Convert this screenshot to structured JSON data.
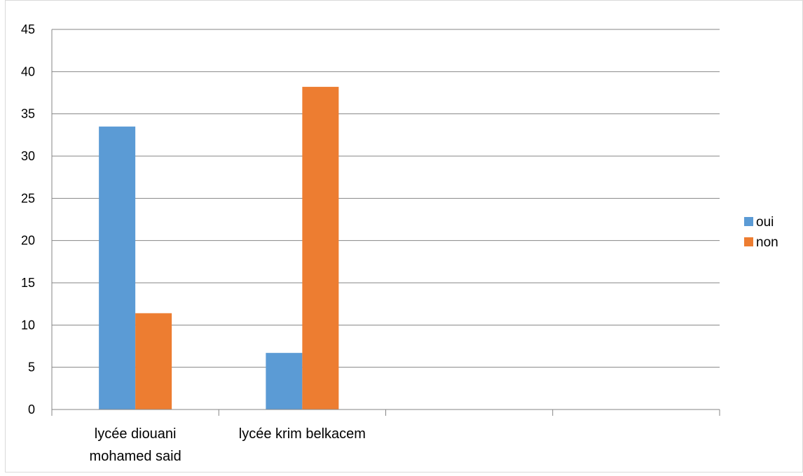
{
  "chart_data": {
    "type": "bar",
    "categories": [
      [
        "lycée diouani",
        "mohamed said"
      ],
      [
        "lycée krim belkacem"
      ],
      [
        ""
      ],
      [
        ""
      ]
    ],
    "series": [
      {
        "name": "oui",
        "color": "#5b9bd5",
        "values": [
          33.5,
          6.7,
          null,
          null
        ]
      },
      {
        "name": "non",
        "color": "#ed7d31",
        "values": [
          11.4,
          38.2,
          null,
          null
        ]
      }
    ],
    "y_ticks": [
      0,
      5,
      10,
      15,
      20,
      25,
      30,
      35,
      40,
      45
    ],
    "ylim": [
      0,
      45
    ],
    "grid": true,
    "legend_position": "right",
    "title": "",
    "xlabel": "",
    "ylabel": ""
  }
}
